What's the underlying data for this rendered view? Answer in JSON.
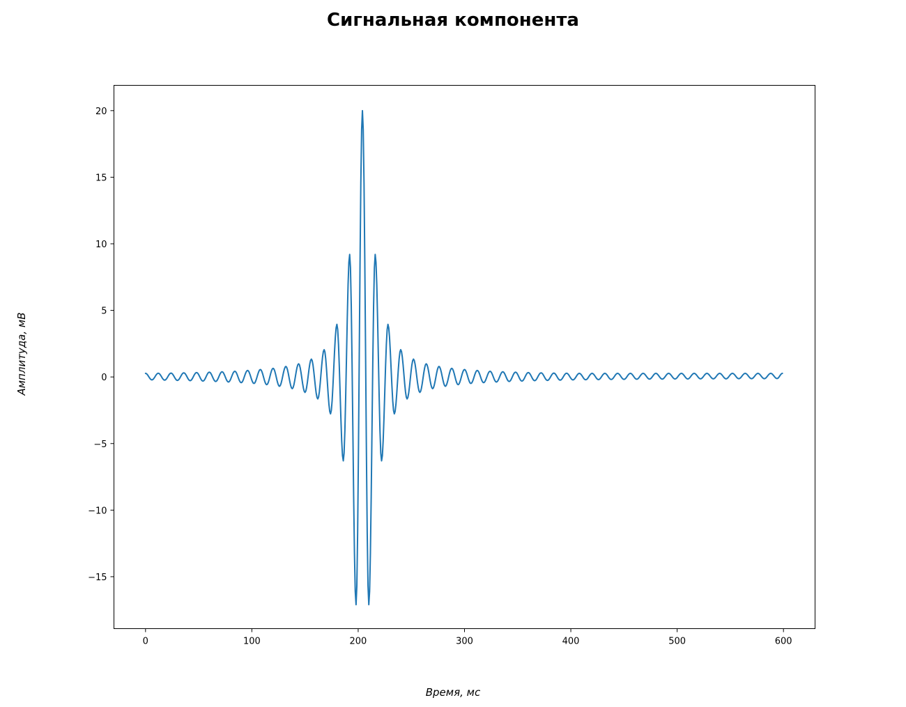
{
  "chart_data": {
    "type": "line",
    "title": "Сигнальная компонента",
    "xlabel": "Время, мс",
    "ylabel": "Амплитуда, мВ",
    "xlim": [
      -29.7,
      629.7
    ],
    "ylim": [
      -18.9,
      21.9
    ],
    "xticks": [
      0,
      100,
      200,
      300,
      400,
      500,
      600
    ],
    "xtick_labels": [
      "0",
      "100",
      "200",
      "300",
      "400",
      "500",
      "600"
    ],
    "yticks": [
      -15,
      -10,
      -5,
      0,
      5,
      10,
      15,
      20
    ],
    "ytick_labels": [
      "−15",
      "−10",
      "−5",
      "0",
      "5",
      "10",
      "15",
      "20"
    ],
    "grid": false,
    "series": [
      {
        "color": "#1f77b4",
        "x_range": [
          0,
          599
        ],
        "samples": 600,
        "x": [
          0,
          6,
          12,
          18,
          24,
          30,
          36,
          42,
          48,
          54,
          60,
          66,
          72,
          78,
          84,
          90,
          96,
          102,
          108,
          114,
          120,
          126,
          132,
          138,
          144,
          150,
          156,
          162,
          168,
          174,
          180,
          186,
          192,
          198,
          204,
          210,
          216,
          222,
          228,
          234,
          240,
          246,
          252,
          258,
          264,
          270,
          276,
          282,
          288,
          294,
          300,
          306,
          312,
          318,
          324,
          330,
          336,
          342,
          348,
          354,
          360,
          366,
          372,
          378,
          384,
          390,
          396,
          402,
          408,
          414,
          420,
          426,
          432,
          438,
          444,
          450,
          456,
          462,
          468,
          474,
          480,
          486,
          492,
          498,
          504,
          510,
          516,
          522,
          528,
          534,
          540,
          546,
          552,
          558,
          564,
          570,
          576,
          582,
          588,
          594,
          599
        ],
        "y": [
          0.27,
          -0.22,
          0.28,
          -0.24,
          0.29,
          -0.26,
          0.31,
          -0.28,
          0.33,
          -0.31,
          0.36,
          -0.34,
          0.39,
          -0.38,
          0.43,
          -0.43,
          0.49,
          -0.49,
          0.56,
          -0.58,
          0.65,
          -0.7,
          0.79,
          -0.88,
          0.99,
          -1.16,
          1.34,
          -1.65,
          2.05,
          -2.77,
          3.95,
          -6.3,
          9.2,
          -17.1,
          20.0,
          -17.1,
          9.2,
          -6.3,
          3.95,
          -2.77,
          2.05,
          -1.65,
          1.34,
          -1.16,
          0.99,
          -0.88,
          0.79,
          -0.7,
          0.65,
          -0.58,
          0.56,
          -0.49,
          0.49,
          -0.43,
          0.43,
          -0.38,
          0.39,
          -0.34,
          0.36,
          -0.31,
          0.33,
          -0.28,
          0.31,
          -0.26,
          0.29,
          -0.24,
          0.28,
          -0.22,
          0.27,
          -0.21,
          0.27,
          -0.2,
          0.27,
          -0.19,
          0.27,
          -0.18,
          0.27,
          -0.17,
          0.27,
          -0.16,
          0.27,
          -0.16,
          0.27,
          -0.15,
          0.27,
          -0.15,
          0.27,
          -0.14,
          0.27,
          -0.14,
          0.27,
          -0.14,
          0.27,
          -0.13,
          0.27,
          -0.13,
          0.27,
          -0.13,
          0.27,
          -0.12,
          0.27
        ]
      }
    ]
  }
}
